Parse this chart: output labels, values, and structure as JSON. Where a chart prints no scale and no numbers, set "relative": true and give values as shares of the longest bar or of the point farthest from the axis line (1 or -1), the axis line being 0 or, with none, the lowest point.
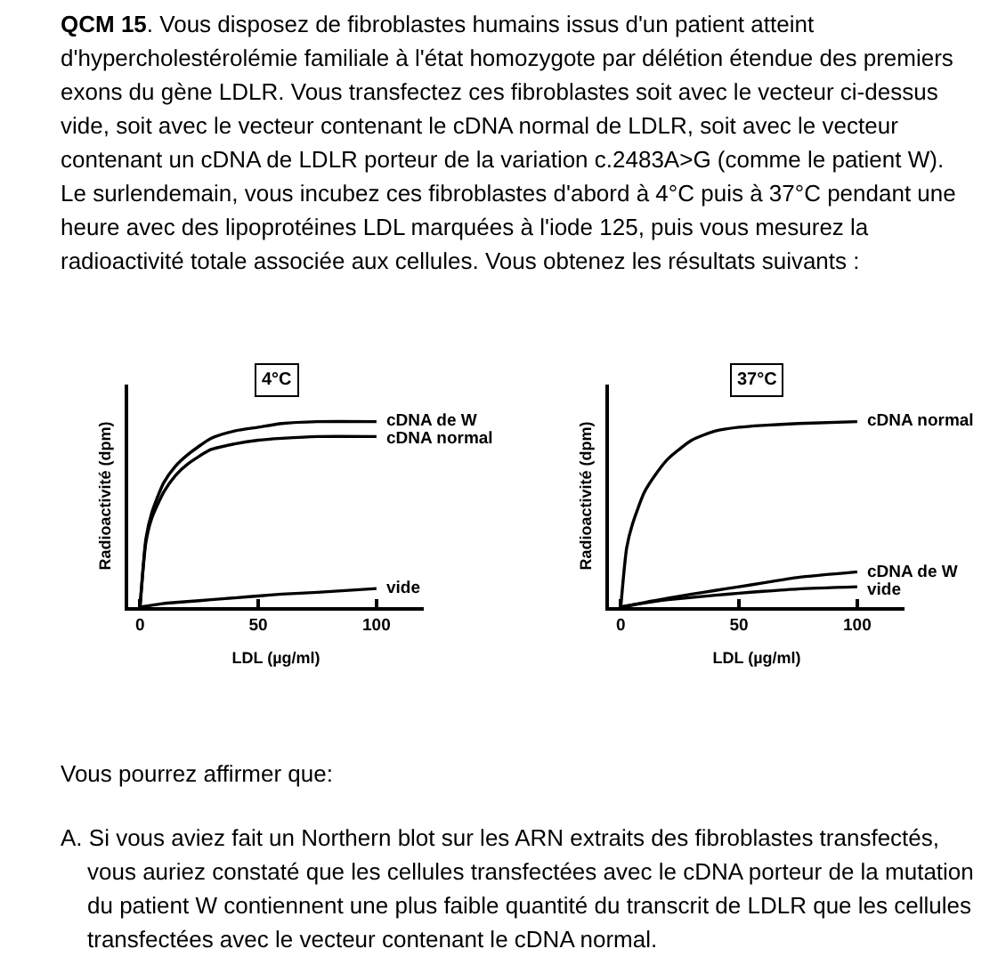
{
  "chart_data": [
    {
      "type": "line",
      "title": "4°C",
      "xlabel": "LDL (µg/ml)",
      "ylabel": "Radioactivité (dpm)",
      "relative": true,
      "xlim": [
        -5,
        120
      ],
      "xticks": [
        0,
        50,
        100
      ],
      "tick_labels": "x",
      "x": [
        0,
        2.5,
        5,
        10,
        15,
        20,
        30,
        40,
        50,
        60,
        75,
        100
      ],
      "series": [
        {
          "name": "cDNA de W",
          "color": "#000000",
          "values": [
            0,
            0.37,
            0.51,
            0.67,
            0.76,
            0.82,
            0.91,
            0.95,
            0.97,
            0.99,
            1.0,
            1.0
          ]
        },
        {
          "name": "cDNA normal",
          "color": "#000000",
          "values": [
            0,
            0.35,
            0.48,
            0.62,
            0.71,
            0.77,
            0.85,
            0.88,
            0.9,
            0.91,
            0.92,
            0.92
          ]
        },
        {
          "name": "vide",
          "color": "#000000",
          "values": [
            0,
            0.005,
            0.01,
            0.02,
            0.025,
            0.03,
            0.04,
            0.05,
            0.06,
            0.07,
            0.08,
            0.1
          ]
        }
      ],
      "annotations": [
        "QCM 15. Vous disposez de fibroblastes humains issus d'un patient atteint\nd'hypercholestérolémie familiale à l'état homozygote par délétion étendue des premiers\nexons du gène LDLR. Vous transfectez ces fibroblastes soit avec le vecteur ci-dessus\nvide, soit avec le vecteur contenant le cDNA normal de LDLR, soit avec le vecteur\ncontenant un cDNA de LDLR porteur de la variation c.2483A>G (comme le patient W).\nLe surlendemain, vous incubez ces fibroblastes d'abord à 4°C puis à 37°C pendant une\nheure avec des lipoprotéines LDL marquées à l'iode 125, puis vous mesurez la\nradioactivité totale associée aux cellules. Vous obtenez les résultats suivants :"
      ]
    },
    {
      "type": "line",
      "title": "37°C",
      "xlabel": "LDL (µg/ml)",
      "ylabel": "Radioactivité (dpm)",
      "relative": true,
      "xlim": [
        -5,
        120
      ],
      "xticks": [
        0,
        50,
        100
      ],
      "tick_labels": "x",
      "x": [
        0,
        2.5,
        5,
        10,
        15,
        20,
        30,
        40,
        50,
        60,
        75,
        100
      ],
      "series": [
        {
          "name": "cDNA normal",
          "color": "#000000",
          "values": [
            0,
            0.32,
            0.45,
            0.62,
            0.72,
            0.8,
            0.9,
            0.95,
            0.97,
            0.98,
            0.99,
            1.0
          ]
        },
        {
          "name": "cDNA de W",
          "color": "#000000",
          "values": [
            0,
            0.006,
            0.012,
            0.025,
            0.037,
            0.048,
            0.07,
            0.09,
            0.11,
            0.13,
            0.16,
            0.19
          ]
        },
        {
          "name": "vide",
          "color": "#000000",
          "values": [
            0,
            0.006,
            0.012,
            0.022,
            0.032,
            0.04,
            0.052,
            0.064,
            0.075,
            0.085,
            0.098,
            0.11
          ]
        }
      ],
      "annotations": [
        "Vous pourrez affirmer que:",
        "A. Si vous aviez fait un Northern blot sur les ARN extraits des fibroblastes transfectés,\nvous auriez constaté que les cellules transfectées avec le cDNA porteur de la mutation\ndu patient W contiennent une plus faible quantité du transcrit de LDLR que les cellules\ntransfectées avec le vecteur contenant le cDNA normal."
      ]
    }
  ]
}
